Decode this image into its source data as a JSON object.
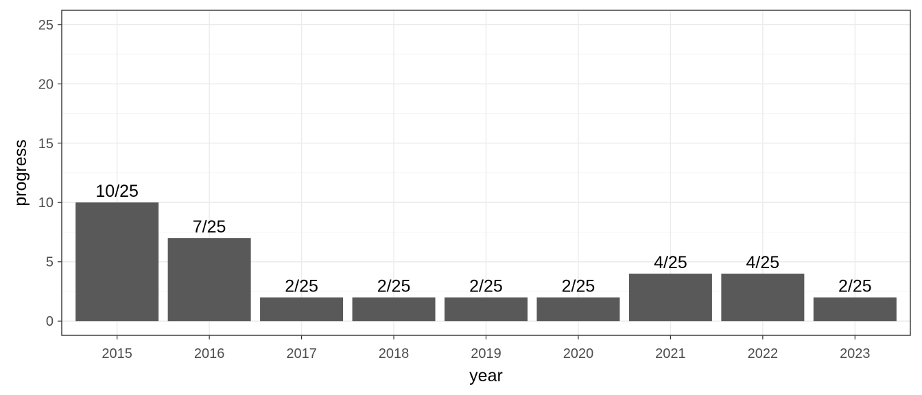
{
  "chart_data": {
    "type": "bar",
    "categories": [
      "2015",
      "2016",
      "2017",
      "2018",
      "2019",
      "2020",
      "2021",
      "2022",
      "2023"
    ],
    "values": [
      10,
      7,
      2,
      2,
      2,
      2,
      4,
      4,
      2
    ],
    "data_labels": [
      "10/25",
      "7/25",
      "2/25",
      "2/25",
      "2/25",
      "2/25",
      "4/25",
      "4/25",
      "2/25"
    ],
    "xlabel": "year",
    "ylabel": "progress",
    "ylim": [
      -1.2,
      26.2
    ],
    "yticks": [
      "0",
      "5",
      "10",
      "15",
      "20",
      "25"
    ],
    "grid": true,
    "bar_color": "#595959",
    "theme": "bw"
  }
}
